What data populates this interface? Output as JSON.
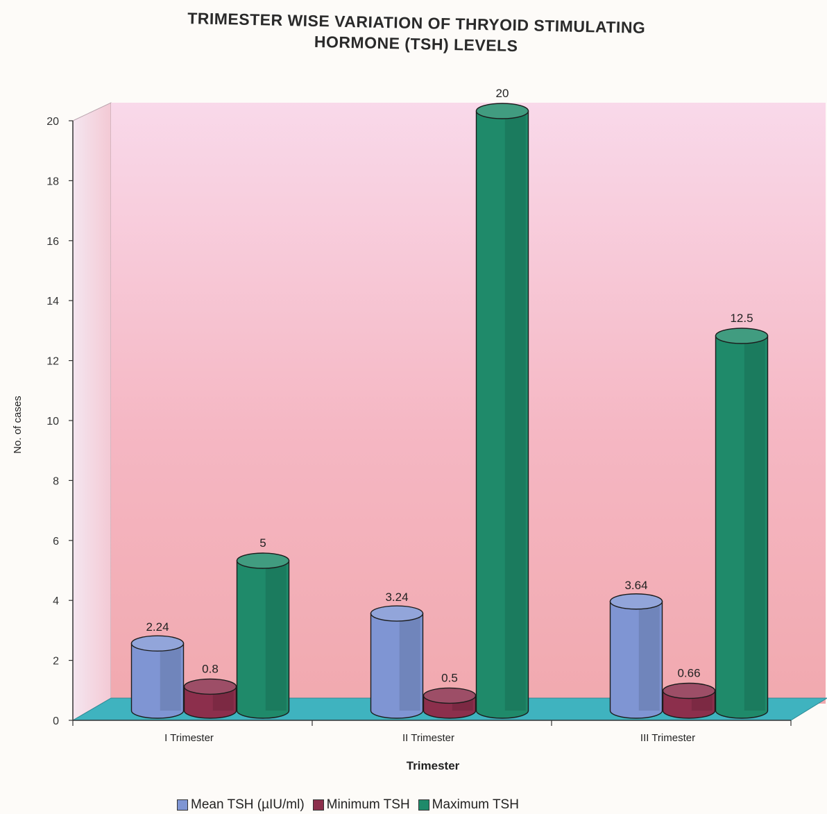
{
  "chart_data": {
    "type": "bar",
    "title_line1": "TRIMESTER WISE VARIATION OF THRYOID STIMULATING",
    "title_line2": "HORMONE (TSH) LEVELS",
    "xlabel": "Trimester",
    "ylabel": "No. of cases",
    "ylim": [
      0,
      20
    ],
    "yticks": [
      "0",
      "2",
      "4",
      "6",
      "8",
      "10",
      "12",
      "14",
      "16",
      "18",
      "20"
    ],
    "categories": [
      "I Trimester",
      "II Trimester",
      "III Trimester"
    ],
    "series": [
      {
        "name": "Mean TSH (µIU/ml)",
        "values": [
          2.24,
          3.24,
          3.64
        ],
        "labels": [
          "2.24",
          "3.24",
          "3.64"
        ],
        "color": "#7f95d3"
      },
      {
        "name": "Minimum TSH",
        "values": [
          0.8,
          0.5,
          0.66
        ],
        "labels": [
          "0.8",
          "0.5",
          "0.66"
        ],
        "color": "#8c2f4c"
      },
      {
        "name": "Maximum TSH",
        "values": [
          5,
          20,
          12.5
        ],
        "labels": [
          "5",
          "20",
          "12.5"
        ],
        "color": "#1f8a6a"
      }
    ],
    "grid": false,
    "legend_position": "bottom",
    "wall_color": "#f6c4cf",
    "floor_color": "#3fb3bf"
  }
}
